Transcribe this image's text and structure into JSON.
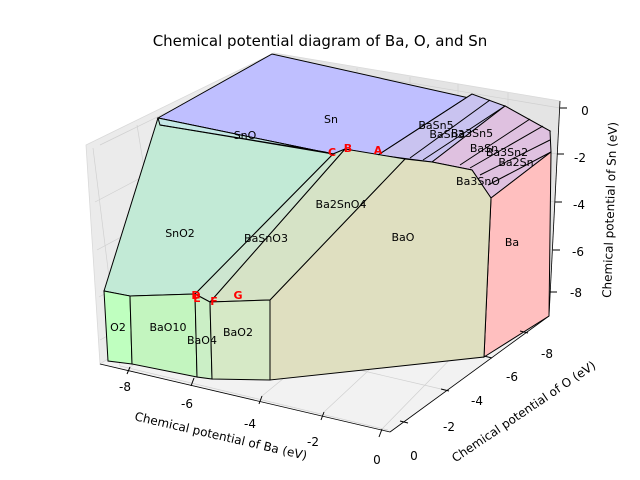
{
  "chart_data": {
    "type": "3d-polyhedron",
    "title": "Chemical potential diagram of Ba, O, and Sn",
    "axes": {
      "x": {
        "label": "Chemical potential of Ba (eV)",
        "ticks": [
          "-8",
          "-6",
          "-4",
          "-2",
          "0"
        ]
      },
      "y": {
        "label": "Chemical potential of O (eV)",
        "ticks": [
          "-8",
          "-6",
          "-4",
          "-2",
          "0"
        ]
      },
      "z": {
        "label": "Chemical potential of Sn (eV)",
        "ticks": [
          "0",
          "-2",
          "-4",
          "-6",
          "-8"
        ]
      }
    },
    "grid": true,
    "regions": [
      {
        "name": "Sn",
        "color": "#bfbfff"
      },
      {
        "name": "SnO",
        "color": "#c4e8e6"
      },
      {
        "name": "SnO2",
        "color": "#c2ead6"
      },
      {
        "name": "BaSnO3",
        "color": "#cde6d0"
      },
      {
        "name": "Ba2SnO4",
        "color": "#d6e3c6"
      },
      {
        "name": "BaO",
        "color": "#dfdfc0"
      },
      {
        "name": "Ba",
        "color": "#ffbfbf"
      },
      {
        "name": "BaSn5",
        "color": "#c6c3ef"
      },
      {
        "name": "BaSn3",
        "color": "#cdc4ea"
      },
      {
        "name": "Ba3Sn5",
        "color": "#d5c3e6"
      },
      {
        "name": "BaSn",
        "color": "#dcc1e2"
      },
      {
        "name": "Ba3Sn2",
        "color": "#e1c0df"
      },
      {
        "name": "Ba2Sn",
        "color": "#e6c0db"
      },
      {
        "name": "Ba3SnO",
        "color": "#e0c2d8"
      },
      {
        "name": "O2",
        "color": "#bfffbf"
      },
      {
        "name": "BaO10",
        "color": "#c3f5bf"
      },
      {
        "name": "BaO4",
        "color": "#cbefc6"
      },
      {
        "name": "BaO2",
        "color": "#d6e9c6"
      }
    ],
    "vertices": [
      "A",
      "B",
      "C",
      "D",
      "E",
      "F",
      "G"
    ]
  }
}
